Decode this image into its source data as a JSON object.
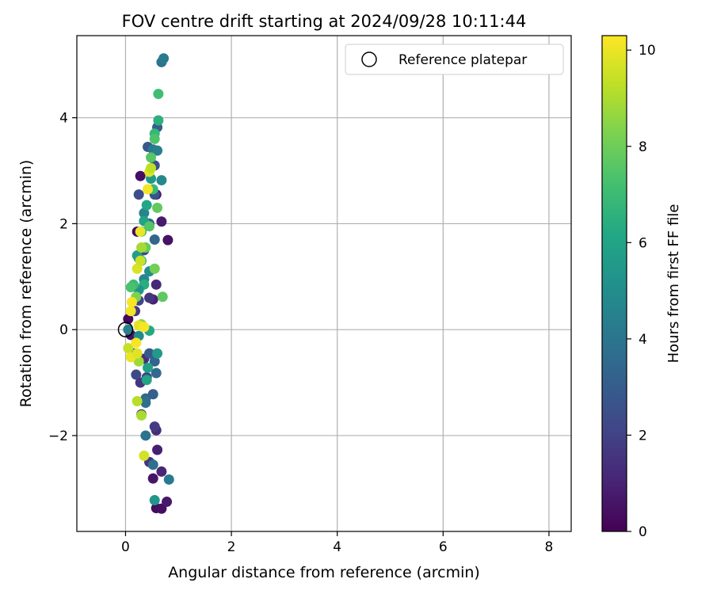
{
  "chart_data": {
    "type": "scatter",
    "title": "FOV centre drift starting at 2024/09/28 10:11:44",
    "xlabel": "Angular distance from reference (arcmin)",
    "ylabel": "Rotation from reference (arcmin)",
    "xlim": [
      -0.92,
      8.42
    ],
    "ylim": [
      -3.81,
      5.55
    ],
    "xticks": [
      0,
      2,
      4,
      6,
      8
    ],
    "yticks": [
      -2,
      0,
      2,
      4
    ],
    "xtick_labels": [
      "0",
      "2",
      "4",
      "6",
      "8"
    ],
    "ytick_labels": [
      "−2",
      "0",
      "2",
      "4"
    ],
    "grid": true,
    "legend": {
      "position": "top-right",
      "entries": [
        "Reference platepar"
      ]
    },
    "reference_point": {
      "x": 0.0,
      "y": 0.0,
      "label": "Reference platepar"
    },
    "colorbar": {
      "label": "Hours from first FF file",
      "range": [
        0,
        10.3
      ],
      "ticks": [
        0,
        2,
        4,
        6,
        8,
        10
      ],
      "tick_labels": [
        "0",
        "2",
        "4",
        "6",
        "8",
        "10"
      ],
      "colormap": [
        "#440154",
        "#482475",
        "#414487",
        "#355f8d",
        "#2a788e",
        "#21918c",
        "#22a884",
        "#44bf70",
        "#7ad151",
        "#bddf26",
        "#fde725"
      ]
    },
    "points": [
      {
        "x": 0.05,
        "y": 0.2,
        "h": 0.2
      },
      {
        "x": 0.1,
        "y": -0.1,
        "h": 0.5
      },
      {
        "x": 0.22,
        "y": 1.85,
        "h": 0.3
      },
      {
        "x": 0.28,
        "y": 2.9,
        "h": 0.4
      },
      {
        "x": 0.58,
        "y": 2.55,
        "h": 0.6
      },
      {
        "x": 0.68,
        "y": 2.04,
        "h": 0.8
      },
      {
        "x": 0.8,
        "y": 1.69,
        "h": 0.5
      },
      {
        "x": 0.52,
        "y": 0.57,
        "h": 1.0
      },
      {
        "x": 0.58,
        "y": 0.85,
        "h": 1.2
      },
      {
        "x": 0.6,
        "y": -2.27,
        "h": 0.9
      },
      {
        "x": 0.52,
        "y": -2.81,
        "h": 0.6
      },
      {
        "x": 0.58,
        "y": -3.37,
        "h": 0.3
      },
      {
        "x": 0.68,
        "y": -3.38,
        "h": 0.4
      },
      {
        "x": 0.78,
        "y": -3.25,
        "h": 0.7
      },
      {
        "x": 0.68,
        "y": -2.68,
        "h": 1.1
      },
      {
        "x": 0.58,
        "y": -1.9,
        "h": 1.3
      },
      {
        "x": 0.45,
        "y": -2.5,
        "h": 1.5
      },
      {
        "x": 0.55,
        "y": -1.83,
        "h": 1.8
      },
      {
        "x": 0.3,
        "y": -1.6,
        "h": 1.2
      },
      {
        "x": 0.28,
        "y": -1.0,
        "h": 1.6
      },
      {
        "x": 0.4,
        "y": -0.9,
        "h": 2.0
      },
      {
        "x": 0.2,
        "y": -0.85,
        "h": 2.3
      },
      {
        "x": 0.15,
        "y": -0.45,
        "h": 1.9
      },
      {
        "x": 0.35,
        "y": -0.55,
        "h": 1.4
      },
      {
        "x": 0.18,
        "y": 0.35,
        "h": 1.7
      },
      {
        "x": 0.25,
        "y": 0.55,
        "h": 2.1
      },
      {
        "x": 0.45,
        "y": 0.6,
        "h": 1.6
      },
      {
        "x": 0.35,
        "y": 1.5,
        "h": 2.2
      },
      {
        "x": 0.25,
        "y": 2.55,
        "h": 2.4
      },
      {
        "x": 0.55,
        "y": 2.55,
        "h": 2.6
      },
      {
        "x": 0.42,
        "y": 3.45,
        "h": 2.8
      },
      {
        "x": 0.55,
        "y": 3.1,
        "h": 2.5
      },
      {
        "x": 0.6,
        "y": 3.82,
        "h": 3.0
      },
      {
        "x": 0.45,
        "y": 2.0,
        "h": 3.2
      },
      {
        "x": 0.55,
        "y": 1.7,
        "h": 3.4
      },
      {
        "x": 0.38,
        "y": -1.3,
        "h": 3.5
      },
      {
        "x": 0.38,
        "y": -1.38,
        "h": 3.8
      },
      {
        "x": 0.52,
        "y": -1.22,
        "h": 3.1
      },
      {
        "x": 0.45,
        "y": -0.45,
        "h": 2.9
      },
      {
        "x": 0.55,
        "y": -0.6,
        "h": 3.3
      },
      {
        "x": 0.58,
        "y": -0.82,
        "h": 3.6
      },
      {
        "x": 0.38,
        "y": -2.0,
        "h": 3.9
      },
      {
        "x": 0.52,
        "y": -2.55,
        "h": 3.7
      },
      {
        "x": 0.82,
        "y": -2.83,
        "h": 4.2
      },
      {
        "x": 0.52,
        "y": 3.4,
        "h": 4.1
      },
      {
        "x": 0.6,
        "y": 3.38,
        "h": 4.4
      },
      {
        "x": 0.68,
        "y": 2.82,
        "h": 4.8
      },
      {
        "x": 0.35,
        "y": 2.2,
        "h": 4.6
      },
      {
        "x": 0.25,
        "y": 1.35,
        "h": 4.3
      },
      {
        "x": 0.35,
        "y": 0.95,
        "h": 4.7
      },
      {
        "x": 0.45,
        "y": 1.1,
        "h": 5.0
      },
      {
        "x": 0.05,
        "y": 0.0,
        "h": 4.5
      },
      {
        "x": 0.25,
        "y": -0.12,
        "h": 4.9
      },
      {
        "x": 0.68,
        "y": 5.05,
        "h": 4.0
      },
      {
        "x": 0.72,
        "y": 5.12,
        "h": 4.3
      },
      {
        "x": 0.55,
        "y": -3.22,
        "h": 5.4
      },
      {
        "x": 0.6,
        "y": -0.45,
        "h": 5.6
      },
      {
        "x": 0.42,
        "y": -0.72,
        "h": 5.8
      },
      {
        "x": 0.4,
        "y": -0.95,
        "h": 6.0
      },
      {
        "x": 0.45,
        "y": -0.02,
        "h": 6.2
      },
      {
        "x": 0.62,
        "y": 3.95,
        "h": 6.5
      },
      {
        "x": 0.55,
        "y": 3.7,
        "h": 6.8
      },
      {
        "x": 0.48,
        "y": 2.85,
        "h": 5.5
      },
      {
        "x": 0.4,
        "y": 2.35,
        "h": 6.1
      },
      {
        "x": 0.35,
        "y": 2.05,
        "h": 5.9
      },
      {
        "x": 0.3,
        "y": 1.85,
        "h": 6.3
      },
      {
        "x": 0.22,
        "y": 1.4,
        "h": 5.7
      },
      {
        "x": 0.3,
        "y": 1.3,
        "h": 6.6
      },
      {
        "x": 0.35,
        "y": 0.85,
        "h": 6.4
      },
      {
        "x": 0.25,
        "y": 0.75,
        "h": 5.3
      },
      {
        "x": 0.15,
        "y": 0.85,
        "h": 7.0
      },
      {
        "x": 0.1,
        "y": 0.8,
        "h": 7.3
      },
      {
        "x": 0.62,
        "y": 4.45,
        "h": 7.1
      },
      {
        "x": 0.55,
        "y": 3.6,
        "h": 7.4
      },
      {
        "x": 0.48,
        "y": 3.25,
        "h": 7.6
      },
      {
        "x": 0.52,
        "y": 2.65,
        "h": 6.9
      },
      {
        "x": 0.6,
        "y": 2.3,
        "h": 7.8
      },
      {
        "x": 0.45,
        "y": 1.95,
        "h": 7.5
      },
      {
        "x": 0.38,
        "y": 1.55,
        "h": 7.9
      },
      {
        "x": 0.55,
        "y": 1.15,
        "h": 8.1
      },
      {
        "x": 0.7,
        "y": 0.62,
        "h": 7.7
      },
      {
        "x": 0.2,
        "y": 0.62,
        "h": 8.3
      },
      {
        "x": 0.3,
        "y": 0.1,
        "h": 8.5
      },
      {
        "x": 0.25,
        "y": -0.6,
        "h": 8.8
      },
      {
        "x": 0.3,
        "y": -1.62,
        "h": 9.0
      },
      {
        "x": 0.22,
        "y": -1.35,
        "h": 9.2
      },
      {
        "x": 0.35,
        "y": -2.38,
        "h": 9.6
      },
      {
        "x": 0.05,
        "y": -0.35,
        "h": 9.4
      },
      {
        "x": 0.1,
        "y": -0.52,
        "h": 10.0
      },
      {
        "x": 0.22,
        "y": -0.45,
        "h": 9.8
      },
      {
        "x": 0.2,
        "y": -0.25,
        "h": 10.2
      },
      {
        "x": 0.25,
        "y": 0.08,
        "h": 9.9
      },
      {
        "x": 0.1,
        "y": 0.35,
        "h": 10.1
      },
      {
        "x": 0.12,
        "y": 0.52,
        "h": 10.2
      },
      {
        "x": 0.22,
        "y": 1.15,
        "h": 9.7
      },
      {
        "x": 0.28,
        "y": 1.3,
        "h": 9.5
      },
      {
        "x": 0.3,
        "y": 1.55,
        "h": 8.9
      },
      {
        "x": 0.28,
        "y": 1.85,
        "h": 10.0
      },
      {
        "x": 0.42,
        "y": 2.65,
        "h": 10.1
      },
      {
        "x": 0.45,
        "y": 2.98,
        "h": 9.8
      },
      {
        "x": 0.48,
        "y": 3.05,
        "h": 9.3
      },
      {
        "x": 0.35,
        "y": 0.05,
        "h": 10.2
      }
    ]
  }
}
